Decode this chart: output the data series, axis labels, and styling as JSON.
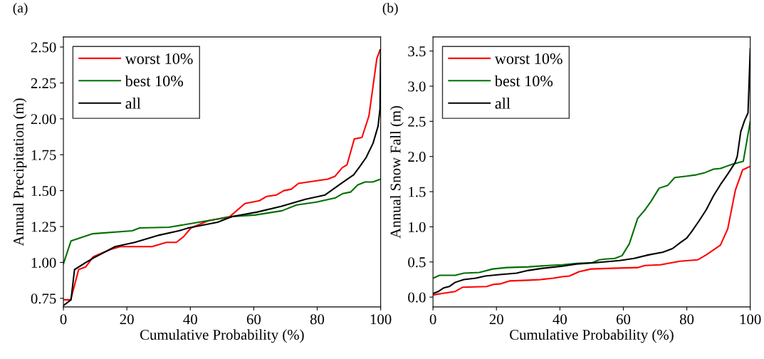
{
  "chart_data": [
    {
      "type": "line",
      "xlabel": "Cumulative Probability (%)",
      "ylabel": "Annual Precipitation (m)",
      "annotations": [
        "(a)"
      ],
      "legend": "top left",
      "grid": false,
      "line_style": "solid",
      "xlim": [
        0,
        100
      ],
      "xticks": [
        0,
        20,
        40,
        60,
        80,
        100
      ],
      "ylim": [
        0.69,
        2.57
      ],
      "yticks": [
        {
          "value": 0.75,
          "label": "0.75"
        },
        {
          "value": 1.0,
          "label": "1.00"
        },
        {
          "value": 1.25,
          "label": "1.25"
        },
        {
          "value": 1.5,
          "label": "1.50"
        },
        {
          "value": 1.75,
          "label": "1.75"
        },
        {
          "value": 2.0,
          "label": "2.00"
        },
        {
          "value": 2.25,
          "label": "2.25"
        },
        {
          "value": 2.5,
          "label": "2.50"
        }
      ],
      "series": [
        {
          "name": "worst 10%",
          "color": "#ff0000",
          "x": [
            0,
            2.3,
            4.8,
            7.1,
            9.4,
            14.8,
            17.9,
            27.9,
            32.5,
            35.6,
            37.9,
            40.2,
            45.6,
            52.5,
            57.2,
            61.8,
            64.1,
            67.2,
            69.5,
            71.8,
            74.1,
            77.2,
            80.2,
            83.3,
            85.6,
            87.9,
            89.4,
            91.7,
            94.1,
            96.3,
            98.8,
            99.8
          ],
          "values": [
            0.74,
            0.74,
            0.95,
            0.97,
            1.04,
            1.09,
            1.11,
            1.11,
            1.14,
            1.14,
            1.18,
            1.24,
            1.29,
            1.32,
            1.41,
            1.43,
            1.46,
            1.47,
            1.5,
            1.51,
            1.55,
            1.56,
            1.57,
            1.58,
            1.6,
            1.66,
            1.68,
            1.86,
            1.87,
            2.02,
            2.42,
            2.48
          ]
        },
        {
          "name": "best 10%",
          "color": "#007000",
          "x": [
            0,
            2.4,
            9.3,
            21.7,
            24,
            33.3,
            42.6,
            53.4,
            60.4,
            68.9,
            73.5,
            79.7,
            85.8,
            88.1,
            90.5,
            92.8,
            95.1,
            97.5,
            100
          ],
          "values": [
            0.99,
            1.15,
            1.2,
            1.22,
            1.24,
            1.245,
            1.28,
            1.32,
            1.33,
            1.36,
            1.4,
            1.42,
            1.45,
            1.48,
            1.49,
            1.54,
            1.56,
            1.56,
            1.58
          ]
        },
        {
          "name": "all",
          "color": "#000000",
          "x": [
            0,
            2.4,
            3.5,
            7.1,
            9.4,
            16.3,
            22.5,
            30.2,
            36.4,
            39.4,
            48.6,
            53.2,
            60.9,
            68.6,
            76.3,
            82.5,
            86.9,
            91.5,
            93.5,
            95.4,
            97.6,
            99.2,
            99.8,
            100
          ],
          "values": [
            0.7,
            0.74,
            0.95,
            1.0,
            1.03,
            1.11,
            1.14,
            1.19,
            1.22,
            1.24,
            1.28,
            1.32,
            1.35,
            1.39,
            1.44,
            1.47,
            1.54,
            1.61,
            1.67,
            1.73,
            1.83,
            1.95,
            2.07,
            2.48
          ]
        }
      ]
    },
    {
      "type": "line",
      "xlabel": "Cumulative Probability (%)",
      "ylabel": "Annual Snow Fall (m)",
      "annotations": [
        "(b)"
      ],
      "legend": "top left",
      "grid": false,
      "line_style": "solid",
      "xlim": [
        0,
        100
      ],
      "xticks": [
        0,
        20,
        40,
        60,
        80,
        100
      ],
      "ylim": [
        -0.14,
        3.7
      ],
      "yticks": [
        {
          "value": 0.0,
          "label": "0.0"
        },
        {
          "value": 0.5,
          "label": "0.5"
        },
        {
          "value": 1.0,
          "label": "1.0"
        },
        {
          "value": 1.5,
          "label": "1.5"
        },
        {
          "value": 2.0,
          "label": "2.0"
        },
        {
          "value": 2.5,
          "label": "2.5"
        },
        {
          "value": 3.0,
          "label": "3.0"
        },
        {
          "value": 3.5,
          "label": "3.5"
        }
      ],
      "series": [
        {
          "name": "worst 10%",
          "color": "#ff0000",
          "x": [
            0,
            2.5,
            7.0,
            9.3,
            16.9,
            19.1,
            21.4,
            24.1,
            30.1,
            33.9,
            38.0,
            40.7,
            43.0,
            46.0,
            49.8,
            56.6,
            64.5,
            66.8,
            71.7,
            77.8,
            83.4,
            86.1,
            88.4,
            90.6,
            92.9,
            95.3,
            97.6,
            100
          ],
          "values": [
            0.03,
            0.05,
            0.08,
            0.14,
            0.15,
            0.18,
            0.19,
            0.23,
            0.24,
            0.25,
            0.27,
            0.29,
            0.3,
            0.36,
            0.4,
            0.41,
            0.42,
            0.45,
            0.46,
            0.51,
            0.53,
            0.6,
            0.67,
            0.74,
            0.97,
            1.52,
            1.81,
            1.86
          ]
        },
        {
          "name": "best 10%",
          "color": "#007000",
          "x": [
            0,
            2.1,
            7.0,
            9.7,
            14.6,
            18.8,
            23.3,
            30.1,
            36.2,
            40.7,
            45.2,
            50.2,
            52.4,
            54.3,
            57.3,
            59.6,
            61.9,
            64.5,
            66.8,
            68.7,
            71.3,
            74.0,
            76.2,
            80.0,
            83.1,
            85.7,
            88.4,
            90.6,
            94.4,
            97.8,
            100
          ],
          "values": [
            0.27,
            0.31,
            0.31,
            0.34,
            0.35,
            0.4,
            0.42,
            0.43,
            0.45,
            0.46,
            0.48,
            0.49,
            0.53,
            0.54,
            0.55,
            0.59,
            0.76,
            1.12,
            1.24,
            1.36,
            1.55,
            1.59,
            1.7,
            1.72,
            1.74,
            1.77,
            1.82,
            1.83,
            1.89,
            1.93,
            2.5
          ]
        },
        {
          "name": "all",
          "color": "#000000",
          "x": [
            0,
            1.7,
            3.3,
            5.1,
            7.0,
            9.7,
            13.5,
            16.5,
            21.0,
            26.3,
            30.1,
            34.6,
            40.7,
            45.2,
            51.3,
            58.9,
            63.4,
            67.9,
            72.5,
            75.5,
            77.8,
            80.0,
            81.5,
            83.8,
            86.1,
            88.4,
            90.6,
            92.9,
            95.2,
            95.9,
            97.0,
            98.2,
            99.3,
            100
          ],
          "values": [
            0.05,
            0.08,
            0.13,
            0.15,
            0.21,
            0.25,
            0.27,
            0.3,
            0.32,
            0.34,
            0.38,
            0.41,
            0.44,
            0.47,
            0.49,
            0.52,
            0.55,
            0.6,
            0.64,
            0.69,
            0.77,
            0.84,
            0.93,
            1.08,
            1.24,
            1.44,
            1.6,
            1.75,
            1.91,
            2.0,
            2.35,
            2.51,
            2.62,
            3.53
          ]
        }
      ]
    }
  ]
}
